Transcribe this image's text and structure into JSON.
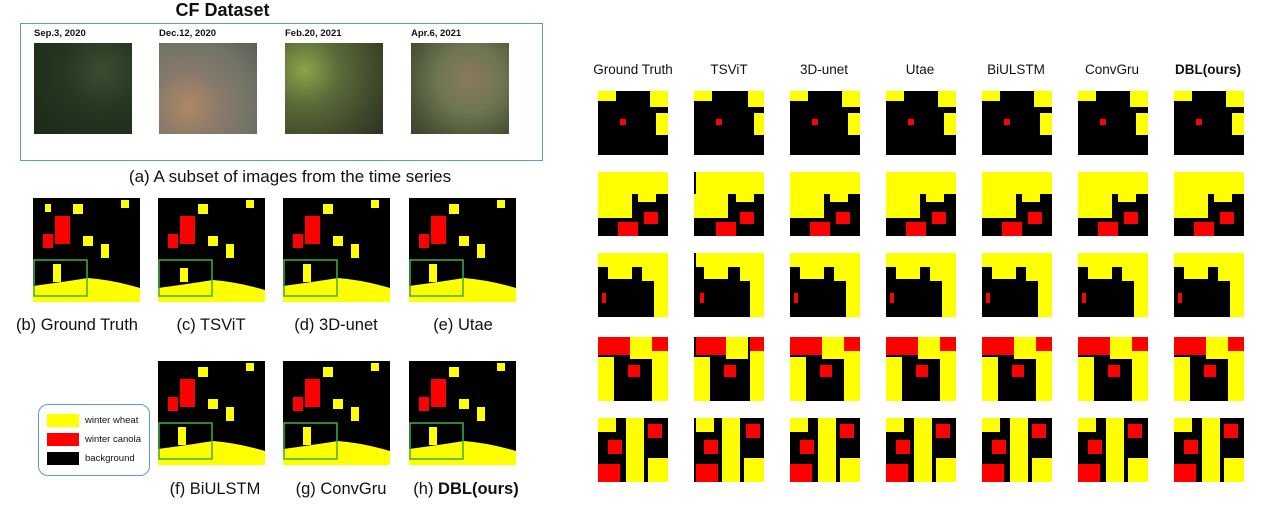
{
  "dataset_title": "CF Dataset",
  "satellite_dates": [
    "Sep.3, 2020",
    "Dec.12, 2020",
    "Feb.20, 2021",
    "Apr.6, 2021"
  ],
  "caption_a": "(a) A subset of images from the time series",
  "left_captions": [
    {
      "prefix": "(b) ",
      "name": "Ground Truth",
      "bold": false
    },
    {
      "prefix": "(c) ",
      "name": "TSViT",
      "bold": false
    },
    {
      "prefix": "(d) ",
      "name": "3D-unet",
      "bold": false
    },
    {
      "prefix": "(e) ",
      "name": "Utae",
      "bold": false
    },
    {
      "prefix": "(f) ",
      "name": "BiULSTM",
      "bold": false
    },
    {
      "prefix": "(g) ",
      "name": "ConvGru",
      "bold": false
    },
    {
      "prefix": "(h) ",
      "name": "DBL(ours)",
      "bold": true
    }
  ],
  "legend": [
    {
      "label": "winter wheat",
      "color": "#ffff00"
    },
    {
      "label": "winter canola",
      "color": "#ff0000"
    },
    {
      "label": "background",
      "color": "#000000"
    }
  ],
  "grid_headers": [
    "Ground Truth",
    "TSViT",
    "3D-unet",
    "Utae",
    "BiULSTM",
    "ConvGru",
    "DBL(ours)"
  ],
  "colors": {
    "wheat": "#ffff00",
    "canola": "#ff0000",
    "background": "#000000",
    "box": "#5b9bd5",
    "highlight": "#3cb043"
  }
}
